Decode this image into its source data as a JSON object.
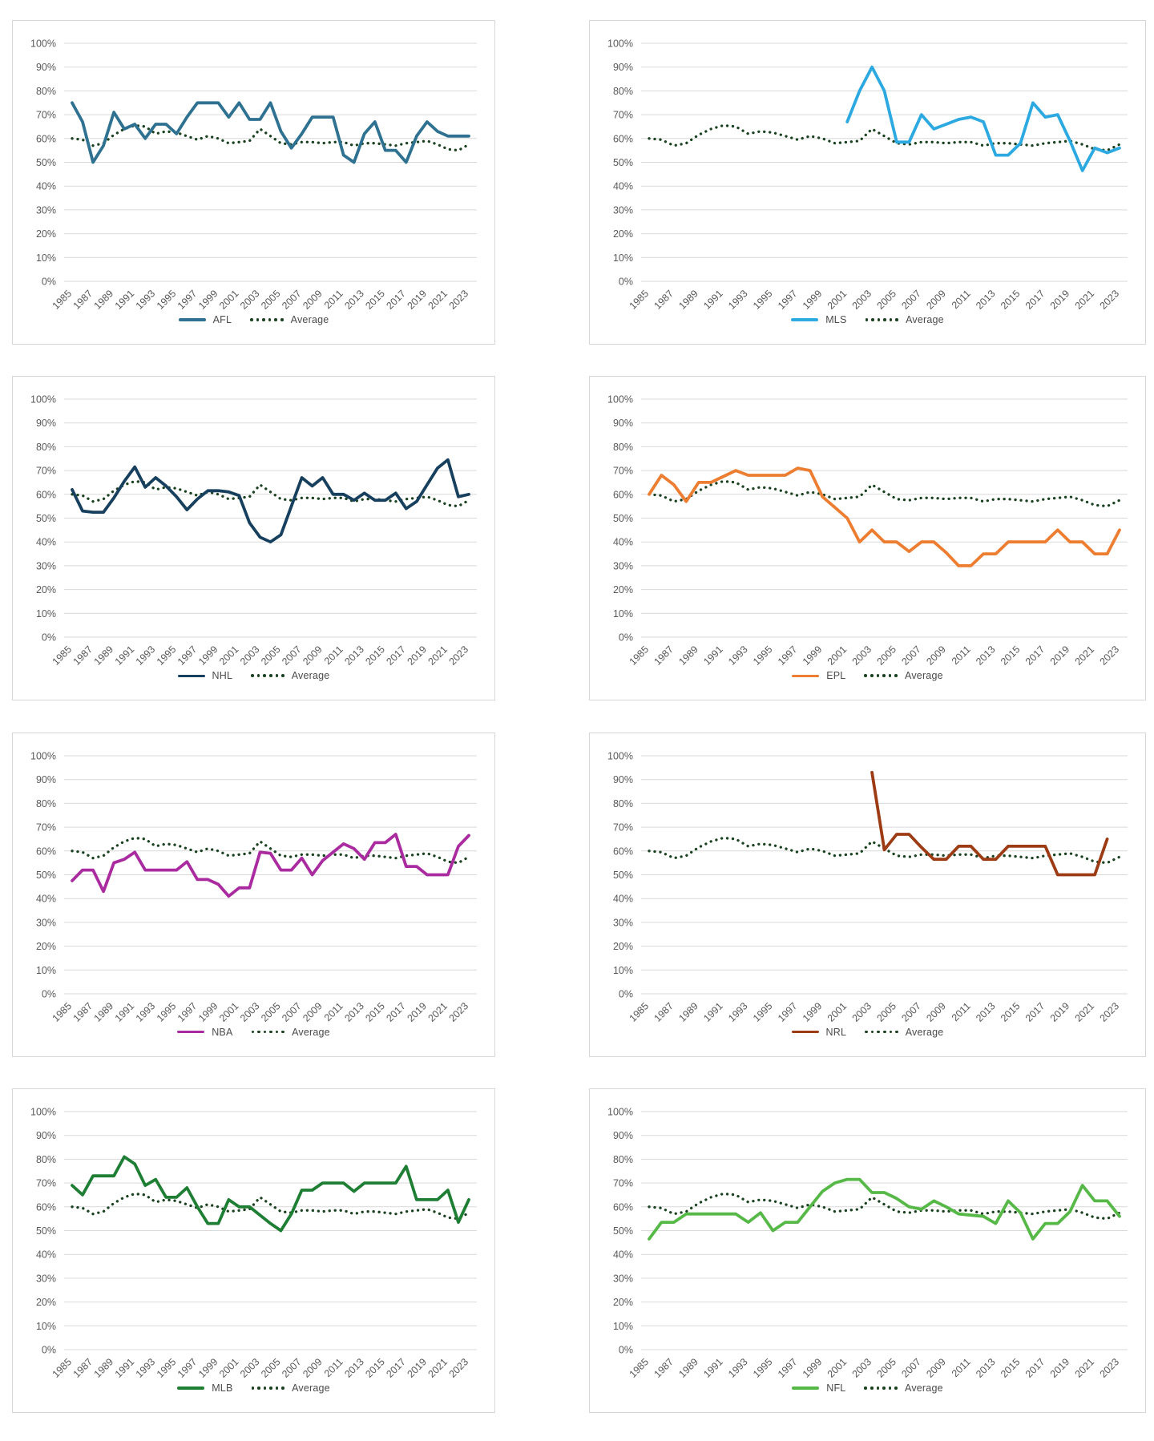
{
  "page": {
    "background": "#ffffff"
  },
  "axis": {
    "y_ticks": [
      "0%",
      "10%",
      "20%",
      "30%",
      "40%",
      "50%",
      "60%",
      "70%",
      "80%",
      "90%",
      "100%"
    ],
    "x_tick_years": [
      "1985",
      "1987",
      "1989",
      "1991",
      "1993",
      "1995",
      "1997",
      "1999",
      "2001",
      "2003",
      "2005",
      "2007",
      "2009",
      "2011",
      "2013",
      "2015",
      "2017",
      "2019",
      "2021",
      "2023"
    ],
    "tick_color": "#595959",
    "grid_color": "#d9d9d9"
  },
  "chart_data": {
    "type": "line",
    "x": [
      1985,
      1986,
      1987,
      1988,
      1989,
      1990,
      1991,
      1992,
      1993,
      1994,
      1995,
      1996,
      1997,
      1998,
      1999,
      2000,
      2001,
      2002,
      2003,
      2004,
      2005,
      2006,
      2007,
      2008,
      2009,
      2010,
      2011,
      2012,
      2013,
      2014,
      2015,
      2016,
      2017,
      2018,
      2019,
      2020,
      2021,
      2022,
      2023
    ],
    "ylim": [
      0,
      100
    ],
    "grid": true,
    "legend_position": "bottom",
    "average_label": "Average",
    "average_color": "#1b4220",
    "average": [
      60,
      59.5,
      57,
      58,
      61.5,
      64,
      65.5,
      65,
      62,
      63,
      62.5,
      61,
      59.5,
      61,
      60,
      58,
      58.5,
      59,
      64,
      61,
      58,
      57.5,
      58.5,
      58.5,
      58,
      58.5,
      58.5,
      57,
      58,
      58,
      57.5,
      57,
      58,
      58.5,
      59,
      57.5,
      55.5,
      55,
      57.5
    ],
    "charts": [
      {
        "league": "AFL",
        "color": "#2e7191",
        "values": [
          75,
          67,
          50,
          57,
          71,
          64,
          66,
          60,
          66,
          66,
          62,
          69,
          75,
          75,
          75,
          69,
          75,
          68,
          68,
          75,
          63,
          56,
          62,
          69,
          69,
          69,
          53,
          50,
          62,
          67,
          55,
          55,
          50,
          61,
          67,
          63,
          61,
          61,
          61
        ]
      },
      {
        "league": "MLS",
        "color": "#2ba9e0",
        "values": [
          null,
          null,
          null,
          null,
          null,
          null,
          null,
          null,
          null,
          null,
          null,
          null,
          null,
          null,
          null,
          null,
          67,
          80,
          90,
          80,
          58.5,
          58.5,
          70,
          64,
          66,
          68,
          69,
          67,
          53,
          53,
          58,
          75,
          69,
          70,
          59,
          46.5,
          56,
          54,
          56
        ]
      },
      {
        "league": "NHL",
        "color": "#173f5e",
        "values": [
          62,
          53,
          52.5,
          52.5,
          58.5,
          65.5,
          71.5,
          63,
          67,
          63.5,
          59,
          53.5,
          58,
          61.5,
          61.5,
          61,
          59.5,
          48,
          42,
          40,
          43,
          55,
          67,
          63.5,
          67,
          60,
          60,
          57.5,
          60.5,
          57.5,
          57.5,
          60.5,
          54,
          57,
          64,
          71,
          74.5,
          59,
          60
        ]
      },
      {
        "league": "EPL",
        "color": "#ec7d31",
        "values": [
          60,
          68,
          64,
          57,
          65,
          65,
          67.5,
          70,
          68,
          68,
          68,
          68,
          71,
          70,
          59,
          54.5,
          50,
          40,
          45,
          40,
          40,
          36,
          40,
          40,
          35.5,
          30,
          30,
          35,
          35,
          40,
          40,
          40,
          40,
          45,
          40,
          40,
          35,
          35,
          45
        ]
      },
      {
        "league": "NBA",
        "color": "#aa2ba0",
        "values": [
          47.5,
          52,
          52,
          43,
          55,
          56.5,
          59.5,
          52,
          52,
          52,
          52,
          55.5,
          48,
          48,
          46,
          41,
          44.5,
          44.5,
          59.5,
          59,
          52,
          52,
          57,
          50,
          56,
          59.5,
          63,
          61,
          56.5,
          63.5,
          63.5,
          67,
          53.5,
          53.5,
          50,
          50,
          50,
          62,
          66.5
        ]
      },
      {
        "league": "NRL",
        "color": "#9c3b14",
        "values": [
          null,
          null,
          null,
          null,
          null,
          null,
          null,
          null,
          null,
          null,
          null,
          null,
          null,
          null,
          null,
          null,
          null,
          null,
          93,
          60.5,
          67,
          67,
          61.5,
          56.5,
          56.5,
          62,
          62,
          56.5,
          56.5,
          62,
          62,
          62,
          62,
          50,
          50,
          50,
          50,
          65,
          null
        ]
      },
      {
        "league": "MLB",
        "color": "#1e7e34",
        "values": [
          69,
          65,
          73,
          73,
          73,
          81,
          78,
          69,
          71.5,
          64,
          64,
          68,
          60,
          53,
          53,
          63,
          60,
          60,
          56.5,
          53,
          50,
          57,
          67,
          67,
          70,
          70,
          70,
          66.5,
          70,
          70,
          70,
          70,
          77,
          63,
          63,
          63,
          67,
          53.5,
          63
        ]
      },
      {
        "league": "NFL",
        "color": "#56b947",
        "values": [
          46.5,
          53.5,
          53.5,
          57,
          57,
          57,
          57,
          57,
          53.5,
          57.5,
          50,
          53.5,
          53.5,
          60,
          66.5,
          70,
          71.5,
          71.5,
          66,
          66,
          63.5,
          60,
          59,
          62.5,
          60,
          57,
          56.5,
          56,
          53,
          62.5,
          57.5,
          46.5,
          53,
          53,
          58,
          69,
          62.5,
          62.5,
          56
        ]
      }
    ]
  }
}
